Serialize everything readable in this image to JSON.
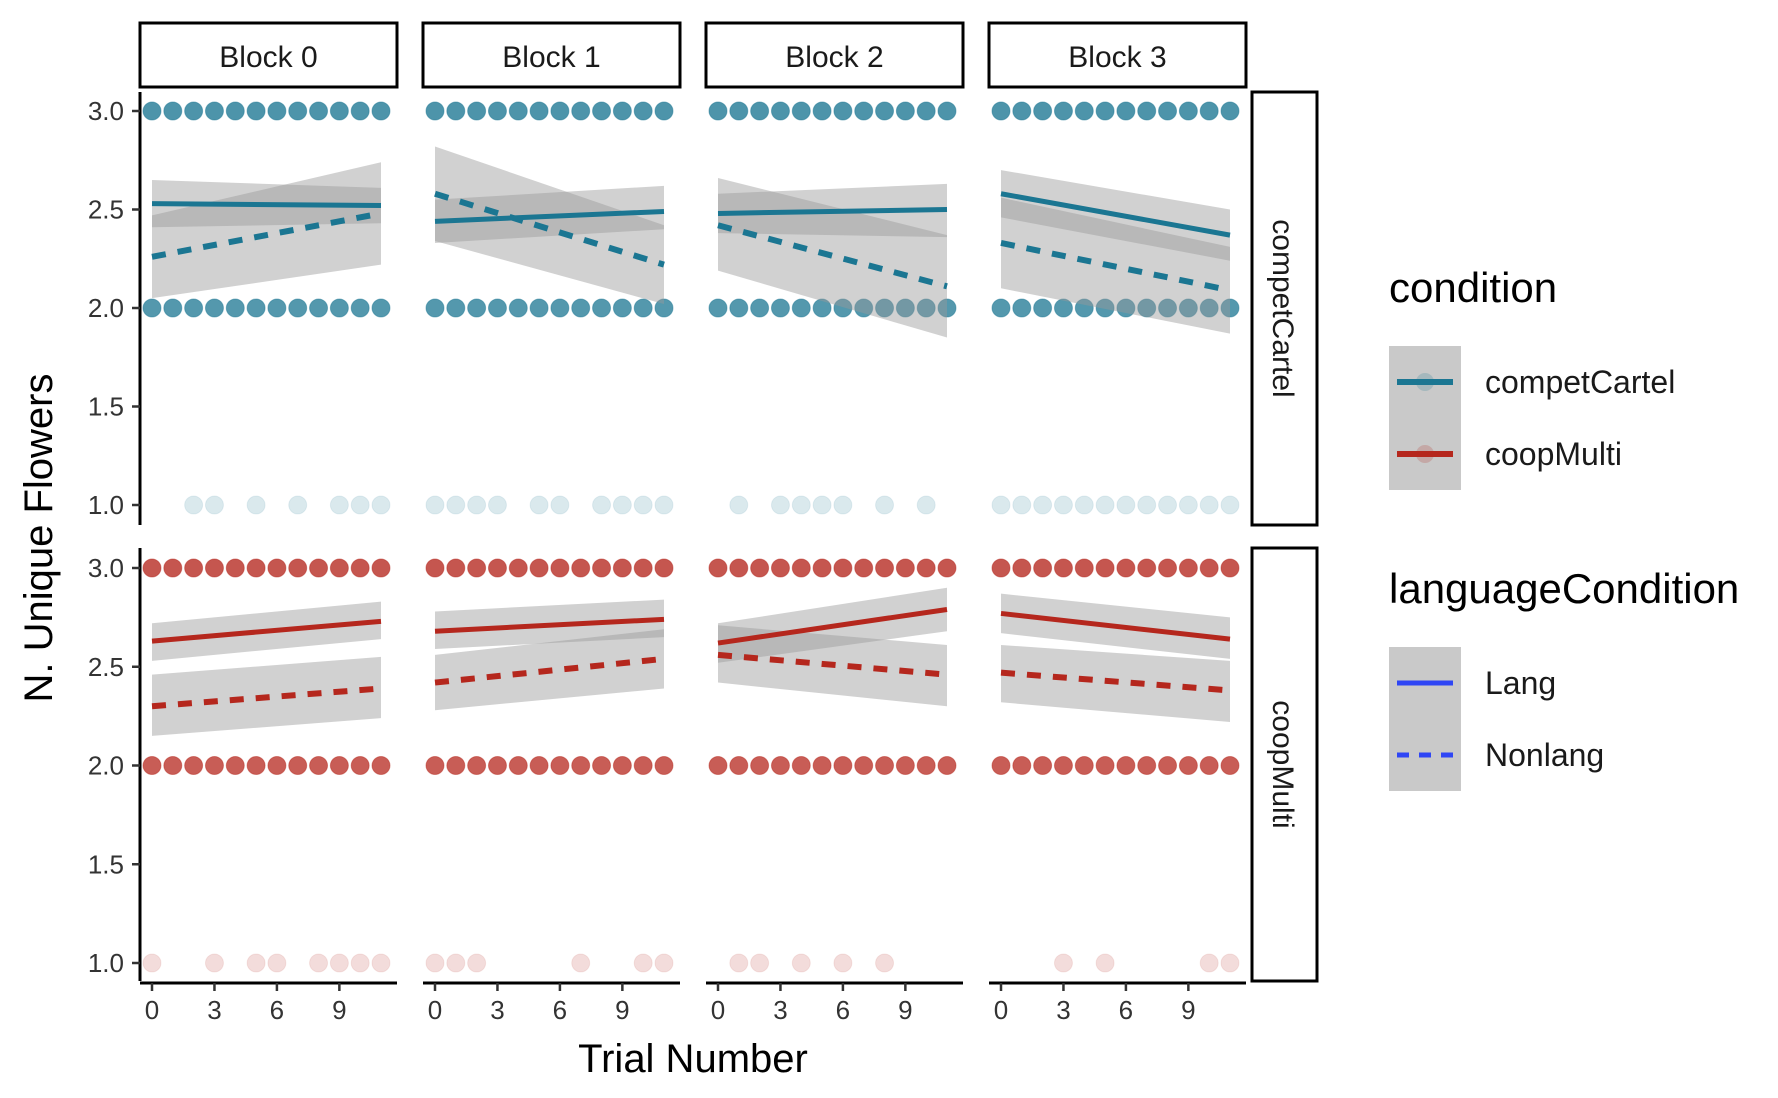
{
  "chart_data": {
    "type": "scatter",
    "facet_columns": [
      "Block 0",
      "Block 1",
      "Block 2",
      "Block 3"
    ],
    "facet_rows": [
      "competCartel",
      "coopMulti"
    ],
    "xlabel": "Trial Number",
    "ylabel": "N. Unique Flowers",
    "x_ticks": [
      0,
      3,
      6,
      9
    ],
    "y_ticks": [
      1.0,
      1.5,
      2.0,
      2.5,
      3.0
    ],
    "y_tick_labels": [
      "1.0",
      "1.5",
      "2.0",
      "2.5",
      "3.0"
    ],
    "x_tick_labels": [
      "0",
      "3",
      "6",
      "9"
    ],
    "xlim": [
      -0.5,
      11.5
    ],
    "ylim": [
      0.92,
      3.08
    ],
    "grid": false,
    "legend_position": "right",
    "colors": {
      "competCartel": "#1b7692",
      "coopMulti": "#b5271d"
    },
    "legends": [
      {
        "title": "condition",
        "items": [
          {
            "label": "competCartel",
            "color": "#1b7692",
            "linetype": "solid"
          },
          {
            "label": "coopMulti",
            "color": "#b5271d",
            "linetype": "solid"
          }
        ]
      },
      {
        "title": "languageCondition",
        "items": [
          {
            "label": "Lang",
            "color": "#2f46f5",
            "linetype": "solid"
          },
          {
            "label": "Nonlang",
            "color": "#2f46f5",
            "linetype": "dashed"
          }
        ]
      }
    ],
    "panels": [
      {
        "row": "competCartel",
        "block": "Block 0",
        "points_y3": [
          0,
          1,
          2,
          3,
          4,
          5,
          6,
          7,
          8,
          9,
          10,
          11
        ],
        "points_y2": [
          0,
          1,
          2,
          3,
          4,
          5,
          6,
          7,
          8,
          9,
          10,
          11
        ],
        "points_y1": [
          2,
          3,
          5,
          7,
          9,
          10,
          11
        ],
        "lang_fit": {
          "x": [
            0,
            11
          ],
          "y": [
            2.53,
            2.52
          ],
          "ci_low": [
            2.41,
            2.43
          ],
          "ci_high": [
            2.65,
            2.61
          ]
        },
        "nonlang_fit": {
          "x": [
            0,
            11
          ],
          "y": [
            2.26,
            2.48
          ],
          "ci_low": [
            2.05,
            2.22
          ],
          "ci_high": [
            2.47,
            2.74
          ]
        }
      },
      {
        "row": "competCartel",
        "block": "Block 1",
        "points_y3": [
          0,
          1,
          2,
          3,
          4,
          5,
          6,
          7,
          8,
          9,
          10,
          11
        ],
        "points_y2": [
          0,
          1,
          2,
          3,
          4,
          5,
          6,
          7,
          8,
          9,
          10,
          11
        ],
        "points_y1": [
          0,
          1,
          2,
          3,
          5,
          6,
          8,
          9,
          10,
          11
        ],
        "lang_fit": {
          "x": [
            0,
            11
          ],
          "y": [
            2.44,
            2.49
          ],
          "ci_low": [
            2.33,
            2.4
          ],
          "ci_high": [
            2.55,
            2.62
          ]
        },
        "nonlang_fit": {
          "x": [
            0,
            11
          ],
          "y": [
            2.58,
            2.22
          ],
          "ci_low": [
            2.34,
            2.02
          ],
          "ci_high": [
            2.82,
            2.42
          ]
        }
      },
      {
        "row": "competCartel",
        "block": "Block 2",
        "points_y3": [
          0,
          1,
          2,
          3,
          4,
          5,
          6,
          7,
          8,
          9,
          10,
          11
        ],
        "points_y2": [
          0,
          1,
          2,
          3,
          4,
          5,
          6,
          7,
          8,
          9,
          10,
          11
        ],
        "points_y1": [
          1,
          3,
          4,
          5,
          6,
          8,
          10
        ],
        "lang_fit": {
          "x": [
            0,
            11
          ],
          "y": [
            2.48,
            2.5
          ],
          "ci_low": [
            2.38,
            2.36
          ],
          "ci_high": [
            2.58,
            2.63
          ]
        },
        "nonlang_fit": {
          "x": [
            0,
            11
          ],
          "y": [
            2.42,
            2.11
          ],
          "ci_low": [
            2.19,
            1.85
          ],
          "ci_high": [
            2.66,
            2.37
          ]
        }
      },
      {
        "row": "competCartel",
        "block": "Block 3",
        "points_y3": [
          0,
          1,
          2,
          3,
          4,
          5,
          6,
          7,
          8,
          9,
          10,
          11
        ],
        "points_y2": [
          0,
          1,
          2,
          3,
          4,
          5,
          6,
          7,
          8,
          9,
          10,
          11
        ],
        "points_y1": [
          0,
          1,
          2,
          3,
          4,
          5,
          6,
          7,
          8,
          9,
          10,
          11
        ],
        "lang_fit": {
          "x": [
            0,
            11
          ],
          "y": [
            2.58,
            2.37
          ],
          "ci_low": [
            2.46,
            2.24
          ],
          "ci_high": [
            2.7,
            2.5
          ]
        },
        "nonlang_fit": {
          "x": [
            0,
            11
          ],
          "y": [
            2.33,
            2.09
          ],
          "ci_low": [
            2.1,
            1.87
          ],
          "ci_high": [
            2.56,
            2.31
          ]
        }
      },
      {
        "row": "coopMulti",
        "block": "Block 0",
        "points_y3": [
          0,
          1,
          2,
          3,
          4,
          5,
          6,
          7,
          8,
          9,
          10,
          11
        ],
        "points_y2": [
          0,
          1,
          2,
          3,
          4,
          5,
          6,
          7,
          8,
          9,
          10,
          11
        ],
        "points_y1": [
          0,
          3,
          5,
          6,
          8,
          9,
          10,
          11
        ],
        "lang_fit": {
          "x": [
            0,
            11
          ],
          "y": [
            2.63,
            2.73
          ],
          "ci_low": [
            2.53,
            2.64
          ],
          "ci_high": [
            2.72,
            2.83
          ]
        },
        "nonlang_fit": {
          "x": [
            0,
            11
          ],
          "y": [
            2.3,
            2.39
          ],
          "ci_low": [
            2.15,
            2.24
          ],
          "ci_high": [
            2.46,
            2.55
          ]
        }
      },
      {
        "row": "coopMulti",
        "block": "Block 1",
        "points_y3": [
          0,
          1,
          2,
          3,
          4,
          5,
          6,
          7,
          8,
          9,
          10,
          11
        ],
        "points_y2": [
          0,
          1,
          2,
          3,
          4,
          5,
          6,
          7,
          8,
          9,
          10,
          11
        ],
        "points_y1": [
          0,
          1,
          2,
          7,
          10,
          11
        ],
        "lang_fit": {
          "x": [
            0,
            11
          ],
          "y": [
            2.68,
            2.74
          ],
          "ci_low": [
            2.59,
            2.65
          ],
          "ci_high": [
            2.78,
            2.84
          ]
        },
        "nonlang_fit": {
          "x": [
            0,
            11
          ],
          "y": [
            2.42,
            2.54
          ],
          "ci_low": [
            2.28,
            2.39
          ],
          "ci_high": [
            2.56,
            2.69
          ]
        }
      },
      {
        "row": "coopMulti",
        "block": "Block 2",
        "points_y3": [
          0,
          1,
          2,
          3,
          4,
          5,
          6,
          7,
          8,
          9,
          10,
          11
        ],
        "points_y2": [
          0,
          1,
          2,
          3,
          4,
          5,
          6,
          7,
          8,
          9,
          10,
          11
        ],
        "points_y1": [
          1,
          2,
          4,
          6,
          8
        ],
        "lang_fit": {
          "x": [
            0,
            11
          ],
          "y": [
            2.62,
            2.79
          ],
          "ci_low": [
            2.52,
            2.68
          ],
          "ci_high": [
            2.72,
            2.9
          ]
        },
        "nonlang_fit": {
          "x": [
            0,
            11
          ],
          "y": [
            2.56,
            2.46
          ],
          "ci_low": [
            2.42,
            2.3
          ],
          "ci_high": [
            2.71,
            2.61
          ]
        }
      },
      {
        "row": "coopMulti",
        "block": "Block 3",
        "points_y3": [
          0,
          1,
          2,
          3,
          4,
          5,
          6,
          7,
          8,
          9,
          10,
          11
        ],
        "points_y2": [
          0,
          1,
          2,
          3,
          4,
          5,
          6,
          7,
          8,
          9,
          10,
          11
        ],
        "points_y1": [
          3,
          5,
          10,
          11
        ],
        "lang_fit": {
          "x": [
            0,
            11
          ],
          "y": [
            2.77,
            2.64
          ],
          "ci_low": [
            2.67,
            2.54
          ],
          "ci_high": [
            2.87,
            2.75
          ]
        },
        "nonlang_fit": {
          "x": [
            0,
            11
          ],
          "y": [
            2.47,
            2.38
          ],
          "ci_low": [
            2.32,
            2.22
          ],
          "ci_high": [
            2.61,
            2.53
          ]
        }
      }
    ]
  }
}
